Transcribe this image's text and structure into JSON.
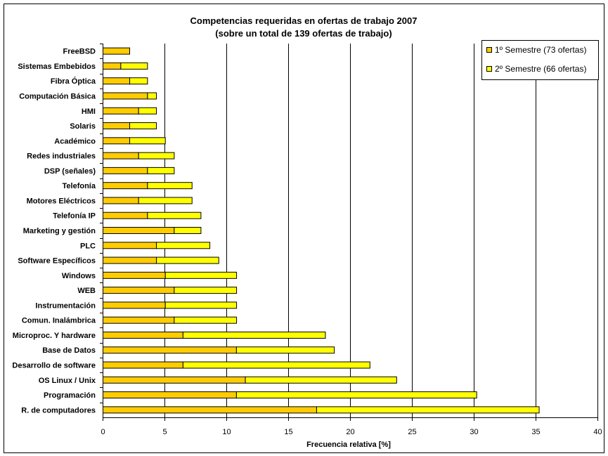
{
  "chart_data": {
    "type": "bar",
    "orientation": "horizontal",
    "stacked": true,
    "title": [
      "Competencias requeridas en ofertas de trabajo 2007",
      "(sobre un total de 139 ofertas de trabajo)"
    ],
    "xlabel": "Frecuencia relativa [%]",
    "ylabel": "",
    "xlim": [
      0,
      40
    ],
    "xticks": [
      0,
      5,
      10,
      15,
      20,
      25,
      30,
      35,
      40
    ],
    "grid": "vertical",
    "legend_position": "top-right",
    "categories": [
      "FreeBSD",
      "Sistemas Embebidos",
      "Fibra Óptica",
      "Computación Básica",
      "HMI",
      "Solaris",
      "Académico",
      "Redes industriales",
      "DSP (señales)",
      "Telefonía",
      "Motores Eléctricos",
      "Telefonía IP",
      "Marketing y gestión",
      "PLC",
      "Software Específicos",
      "Windows",
      "WEB",
      "Instrumentación",
      "Comun. Inalámbrica",
      "Microproc. Y hardware",
      "Base de Datos",
      "Desarrollo de software",
      "OS Linux / Unix",
      "Programación",
      "R. de computadores"
    ],
    "series": [
      {
        "name": "1º Semestre (73 ofertas)",
        "color": "#FFCC00",
        "values": [
          2.16,
          1.44,
          2.16,
          3.6,
          2.88,
          2.16,
          2.16,
          2.88,
          3.6,
          3.6,
          2.88,
          3.6,
          5.76,
          4.32,
          4.32,
          5.04,
          5.76,
          5.04,
          5.76,
          6.47,
          10.79,
          6.47,
          11.51,
          10.79,
          17.27
        ]
      },
      {
        "name": "2º Semestre (66 ofertas)",
        "color": "#FFFF00",
        "values": [
          0,
          2.16,
          1.44,
          0.72,
          1.44,
          2.16,
          2.88,
          2.88,
          2.16,
          3.6,
          4.32,
          4.32,
          2.16,
          4.32,
          5.04,
          5.76,
          5.04,
          5.76,
          5.04,
          11.51,
          7.91,
          15.11,
          12.23,
          19.42,
          17.99
        ]
      }
    ]
  }
}
